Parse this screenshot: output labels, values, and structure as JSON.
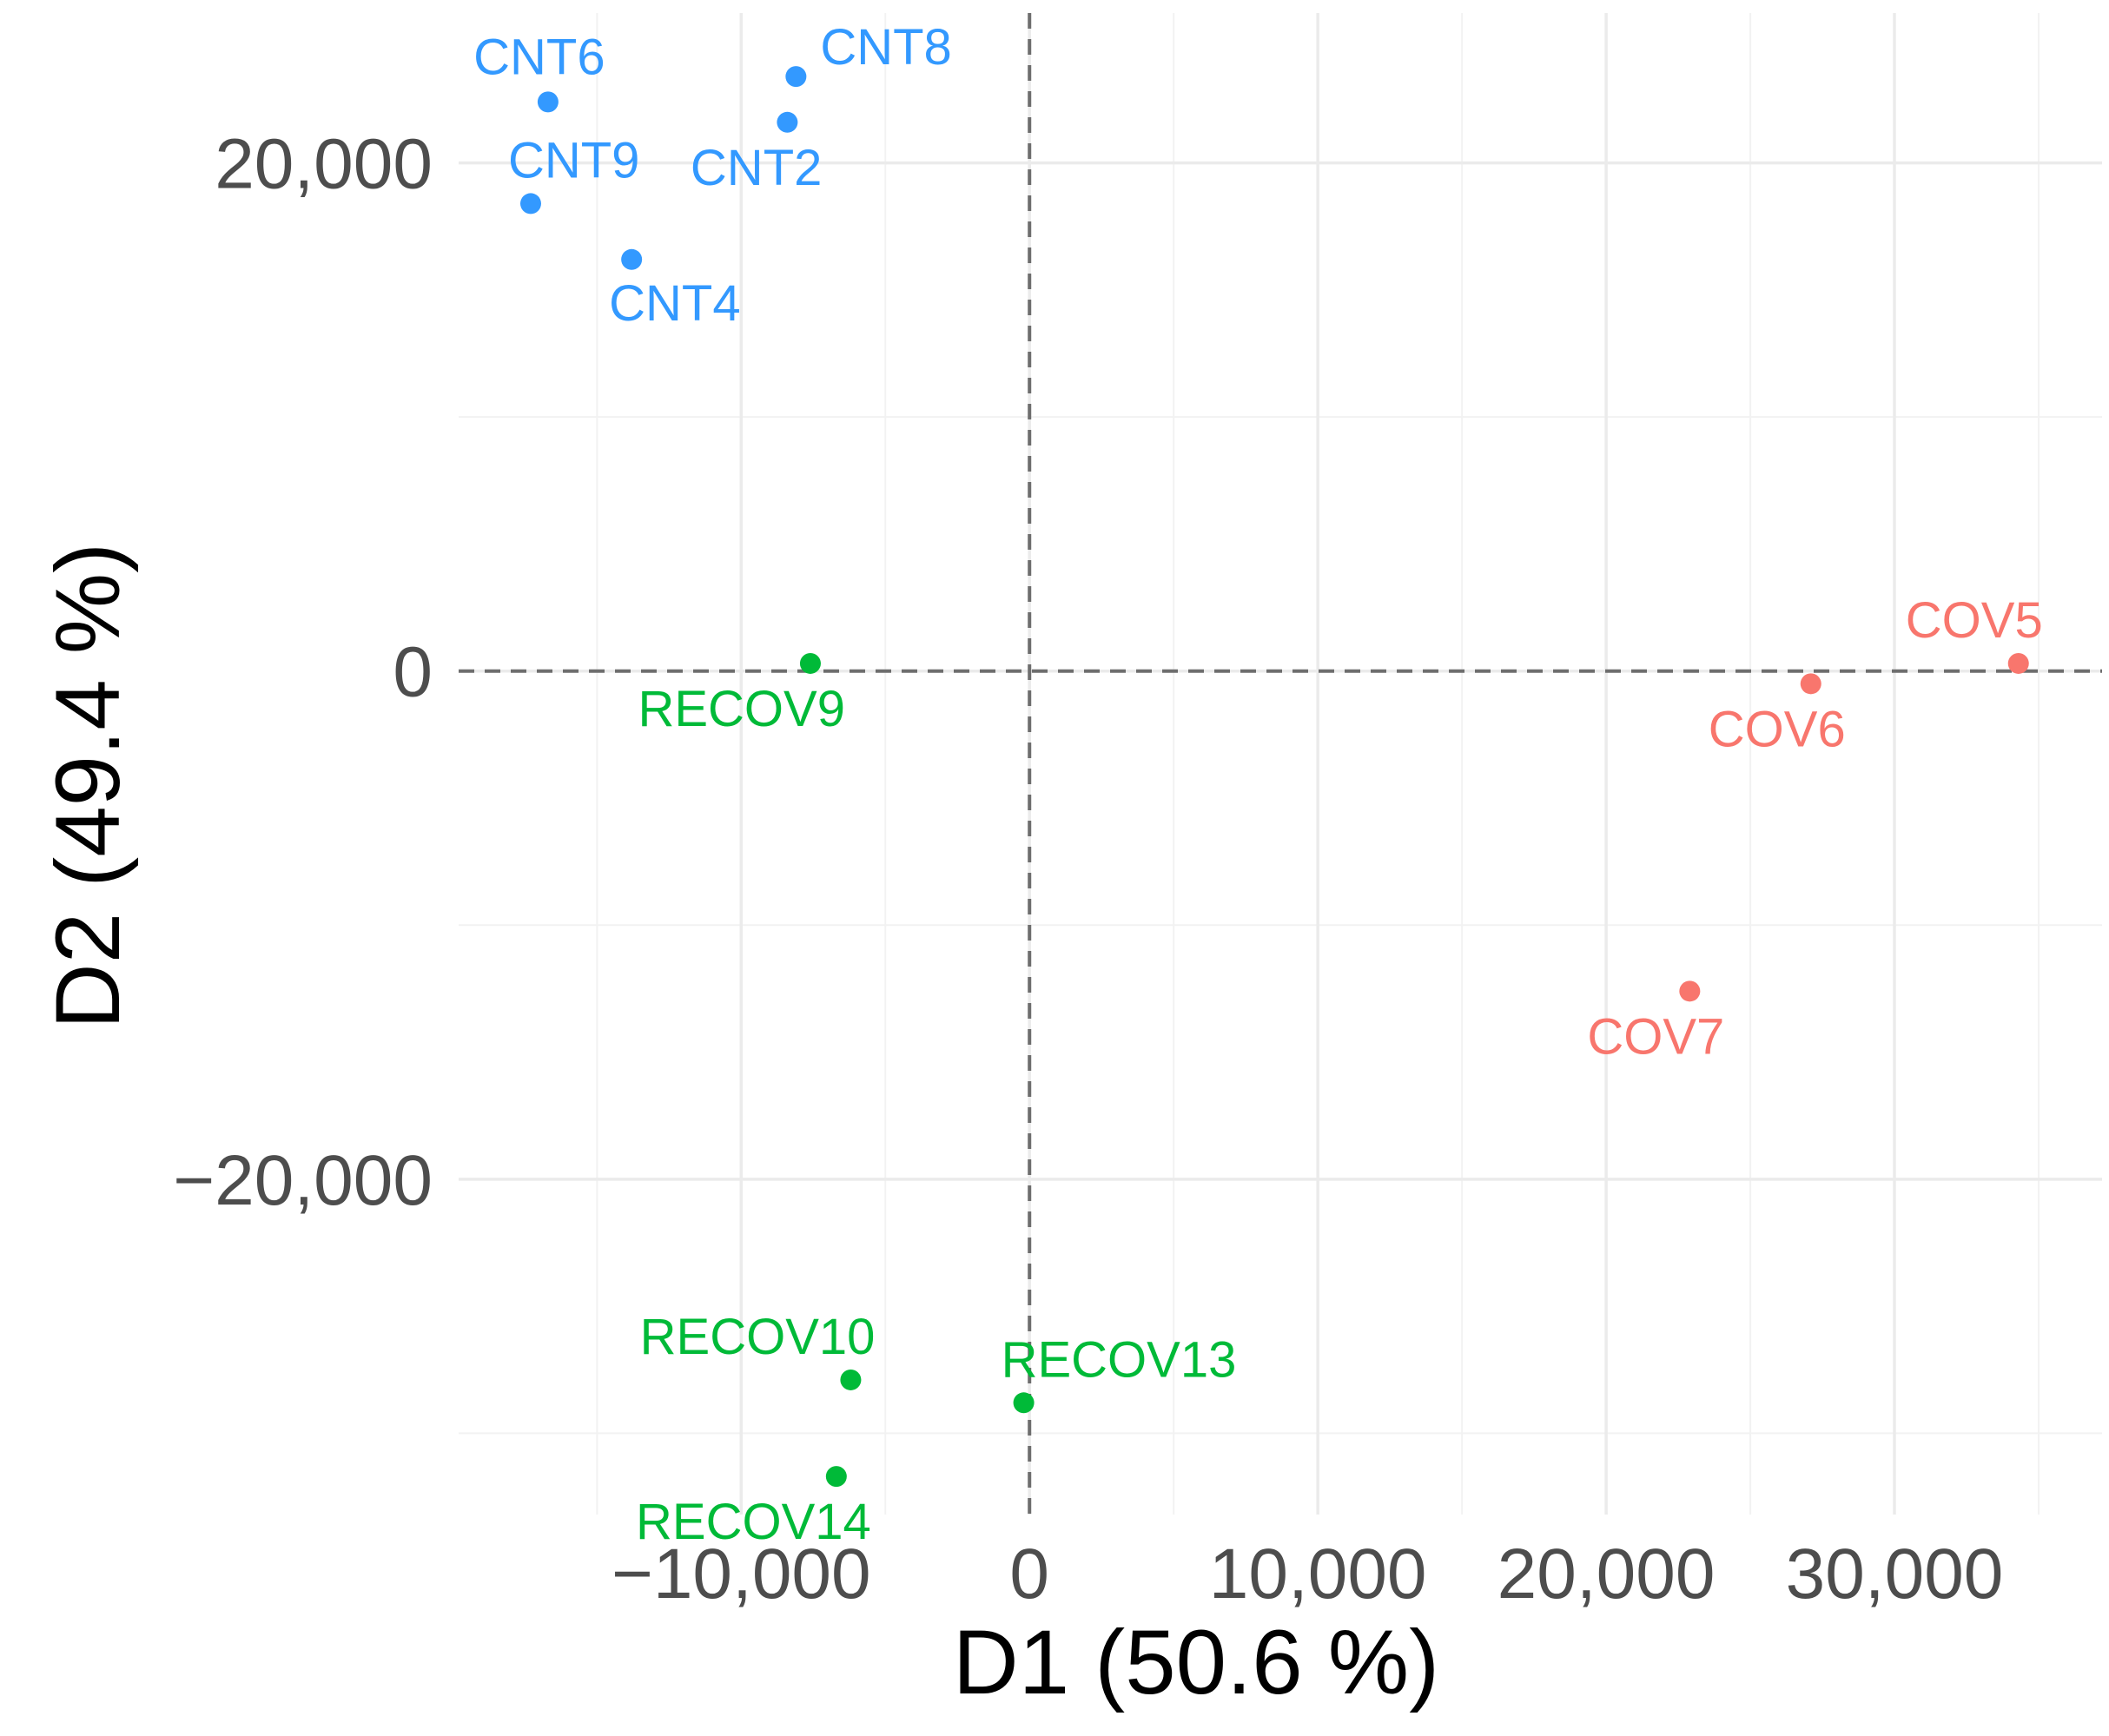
{
  "chart_data": {
    "type": "scatter",
    "title": "",
    "xlabel": "D1 (50.6 %)",
    "ylabel": "D2 (49.4 %)",
    "xlim": [
      -19800,
      37200
    ],
    "ylim": [
      -33200,
      25900
    ],
    "x_ticks": [
      -10000,
      0,
      10000,
      20000,
      30000
    ],
    "x_tick_labels": [
      "−10,000",
      "0",
      "10,000",
      "20,000",
      "30,000"
    ],
    "y_ticks": [
      -20000,
      0,
      20000
    ],
    "y_tick_labels": [
      "−20,000",
      "0",
      "20,000"
    ],
    "grid": true,
    "reference_lines": {
      "x": 0,
      "y": 0,
      "style": "dashed"
    },
    "series": [
      {
        "name": "CNT",
        "color": "#3399FF",
        "points": [
          {
            "label": "CNT6",
            "x": -16700,
            "y": 22400,
            "label_pos": "above"
          },
          {
            "label": "CNT8",
            "x": -8100,
            "y": 23400,
            "label_pos": "right"
          },
          {
            "label": "CNT2",
            "x": -8400,
            "y": 21600,
            "label_pos": "below-left"
          },
          {
            "label": "CNT9",
            "x": -17300,
            "y": 18400,
            "label_pos": "above-right"
          },
          {
            "label": "CNT4",
            "x": -13800,
            "y": 16200,
            "label_pos": "below-right"
          }
        ]
      },
      {
        "name": "COV",
        "color": "#F8766D",
        "points": [
          {
            "label": "COV5",
            "x": 34300,
            "y": 300,
            "label_pos": "above-left"
          },
          {
            "label": "COV6",
            "x": 27100,
            "y": -500,
            "label_pos": "below-left"
          },
          {
            "label": "COV7",
            "x": 22900,
            "y": -12600,
            "label_pos": "below-left"
          }
        ]
      },
      {
        "name": "RECOV",
        "color": "#00BA38",
        "points": [
          {
            "label": "RECOV9",
            "x": -7600,
            "y": 300,
            "label_pos": "below-left"
          },
          {
            "label": "RECOV10",
            "x": -6200,
            "y": -27900,
            "label_pos": "above-left"
          },
          {
            "label": "RECOV13",
            "x": -200,
            "y": -28800,
            "label_pos": "above-right"
          },
          {
            "label": "RECOV14",
            "x": -6700,
            "y": -31700,
            "label_pos": "below-left"
          }
        ]
      }
    ]
  }
}
